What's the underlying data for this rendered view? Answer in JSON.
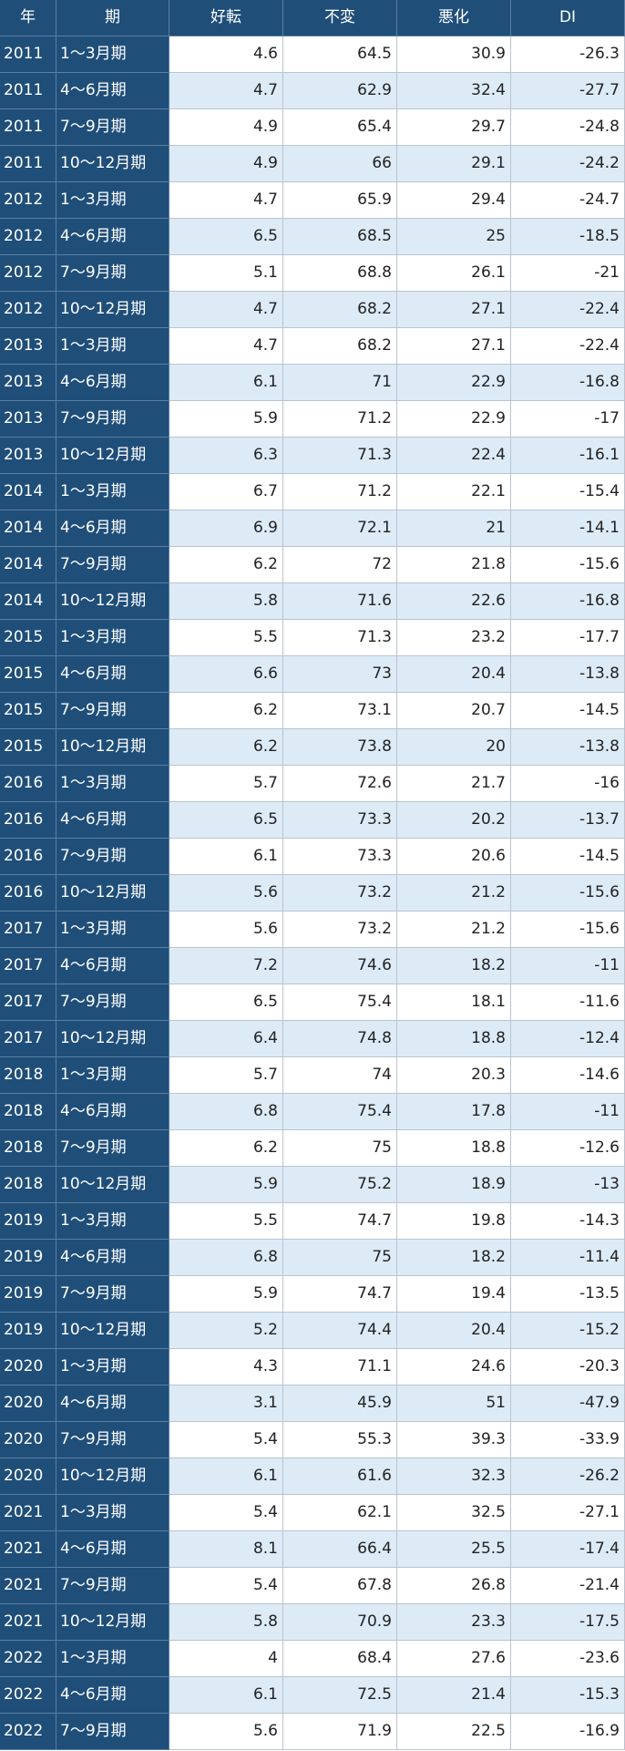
{
  "table": {
    "headers": [
      "年",
      "期",
      "好転",
      "不変",
      "悪化",
      "DI"
    ],
    "rows": [
      [
        "2011",
        "1～3月期",
        4.6,
        64.5,
        30.9,
        -26.3
      ],
      [
        "2011",
        "4～6月期",
        4.7,
        62.9,
        32.4,
        -27.7
      ],
      [
        "2011",
        "7～9月期",
        4.9,
        65.4,
        29.7,
        -24.8
      ],
      [
        "2011",
        "10～12月期",
        4.9,
        66,
        29.1,
        -24.2
      ],
      [
        "2012",
        "1～3月期",
        4.7,
        65.9,
        29.4,
        -24.7
      ],
      [
        "2012",
        "4～6月期",
        6.5,
        68.5,
        25,
        -18.5
      ],
      [
        "2012",
        "7～9月期",
        5.1,
        68.8,
        26.1,
        -21
      ],
      [
        "2012",
        "10～12月期",
        4.7,
        68.2,
        27.1,
        -22.4
      ],
      [
        "2013",
        "1～3月期",
        4.7,
        68.2,
        27.1,
        -22.4
      ],
      [
        "2013",
        "4～6月期",
        6.1,
        71,
        22.9,
        -16.8
      ],
      [
        "2013",
        "7～9月期",
        5.9,
        71.2,
        22.9,
        -17
      ],
      [
        "2013",
        "10～12月期",
        6.3,
        71.3,
        22.4,
        -16.1
      ],
      [
        "2014",
        "1～3月期",
        6.7,
        71.2,
        22.1,
        -15.4
      ],
      [
        "2014",
        "4～6月期",
        6.9,
        72.1,
        21,
        -14.1
      ],
      [
        "2014",
        "7～9月期",
        6.2,
        72,
        21.8,
        -15.6
      ],
      [
        "2014",
        "10～12月期",
        5.8,
        71.6,
        22.6,
        -16.8
      ],
      [
        "2015",
        "1～3月期",
        5.5,
        71.3,
        23.2,
        -17.7
      ],
      [
        "2015",
        "4～6月期",
        6.6,
        73,
        20.4,
        -13.8
      ],
      [
        "2015",
        "7～9月期",
        6.2,
        73.1,
        20.7,
        -14.5
      ],
      [
        "2015",
        "10～12月期",
        6.2,
        73.8,
        20,
        -13.8
      ],
      [
        "2016",
        "1～3月期",
        5.7,
        72.6,
        21.7,
        -16
      ],
      [
        "2016",
        "4～6月期",
        6.5,
        73.3,
        20.2,
        -13.7
      ],
      [
        "2016",
        "7～9月期",
        6.1,
        73.3,
        20.6,
        -14.5
      ],
      [
        "2016",
        "10～12月期",
        5.6,
        73.2,
        21.2,
        -15.6
      ],
      [
        "2017",
        "1～3月期",
        5.6,
        73.2,
        21.2,
        -15.6
      ],
      [
        "2017",
        "4～6月期",
        7.2,
        74.6,
        18.2,
        -11
      ],
      [
        "2017",
        "7～9月期",
        6.5,
        75.4,
        18.1,
        -11.6
      ],
      [
        "2017",
        "10～12月期",
        6.4,
        74.8,
        18.8,
        -12.4
      ],
      [
        "2018",
        "1～3月期",
        5.7,
        74,
        20.3,
        -14.6
      ],
      [
        "2018",
        "4～6月期",
        6.8,
        75.4,
        17.8,
        -11
      ],
      [
        "2018",
        "7～9月期",
        6.2,
        75,
        18.8,
        -12.6
      ],
      [
        "2018",
        "10～12月期",
        5.9,
        75.2,
        18.9,
        -13
      ],
      [
        "2019",
        "1～3月期",
        5.5,
        74.7,
        19.8,
        -14.3
      ],
      [
        "2019",
        "4～6月期",
        6.8,
        75,
        18.2,
        -11.4
      ],
      [
        "2019",
        "7～9月期",
        5.9,
        74.7,
        19.4,
        -13.5
      ],
      [
        "2019",
        "10～12月期",
        5.2,
        74.4,
        20.4,
        -15.2
      ],
      [
        "2020",
        "1～3月期",
        4.3,
        71.1,
        24.6,
        -20.3
      ],
      [
        "2020",
        "4～6月期",
        3.1,
        45.9,
        51,
        -47.9
      ],
      [
        "2020",
        "7～9月期",
        5.4,
        55.3,
        39.3,
        -33.9
      ],
      [
        "2020",
        "10～12月期",
        6.1,
        61.6,
        32.3,
        -26.2
      ],
      [
        "2021",
        "1～3月期",
        5.4,
        62.1,
        32.5,
        -27.1
      ],
      [
        "2021",
        "4～6月期",
        8.1,
        66.4,
        25.5,
        -17.4
      ],
      [
        "2021",
        "7～9月期",
        5.4,
        67.8,
        26.8,
        -21.4
      ],
      [
        "2021",
        "10～12月期",
        5.8,
        70.9,
        23.3,
        -17.5
      ],
      [
        "2022",
        "1～3月期",
        4,
        68.4,
        27.6,
        -23.6
      ],
      [
        "2022",
        "4～6月期",
        6.1,
        72.5,
        21.4,
        -15.3
      ],
      [
        "2022",
        "7～9月期",
        5.6,
        71.9,
        22.5,
        -16.9
      ]
    ]
  }
}
